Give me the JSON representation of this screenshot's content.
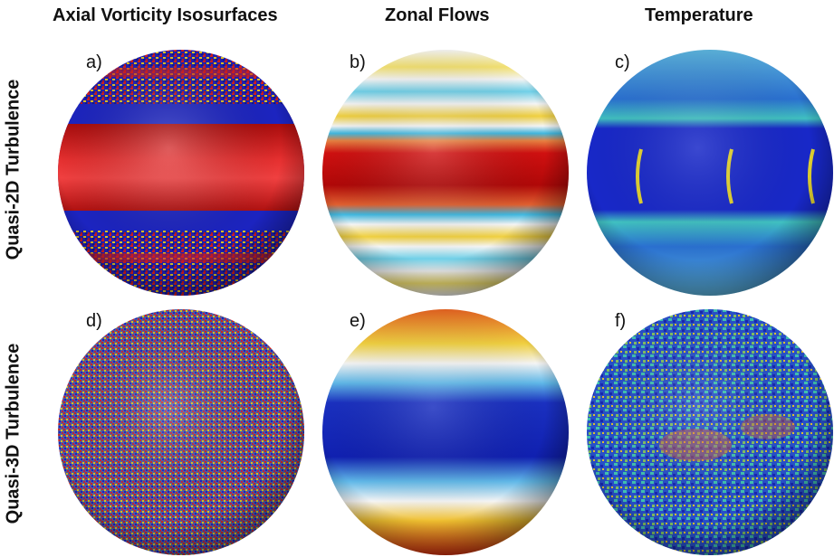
{
  "columns": [
    "Axial Vorticity Isosurfaces",
    "Zonal Flows",
    "Temperature"
  ],
  "rows": [
    "Quasi-2D Turbulence",
    "Quasi-3D Turbulence"
  ],
  "panels": [
    {
      "label": "a)",
      "name": "quasi2d-vorticity-sphere"
    },
    {
      "label": "b)",
      "name": "quasi2d-zonal-flow-sphere"
    },
    {
      "label": "c)",
      "name": "quasi2d-temperature-sphere"
    },
    {
      "label": "d)",
      "name": "quasi3d-vorticity-sphere"
    },
    {
      "label": "e)",
      "name": "quasi3d-zonal-flow-sphere"
    },
    {
      "label": "f)",
      "name": "quasi3d-temperature-sphere"
    }
  ],
  "colors": {
    "red": "#c81414",
    "blue": "#1a20c8",
    "yellow": "#e8d020",
    "cyan": "#5ad0e8",
    "white": "#f4f4f4"
  }
}
